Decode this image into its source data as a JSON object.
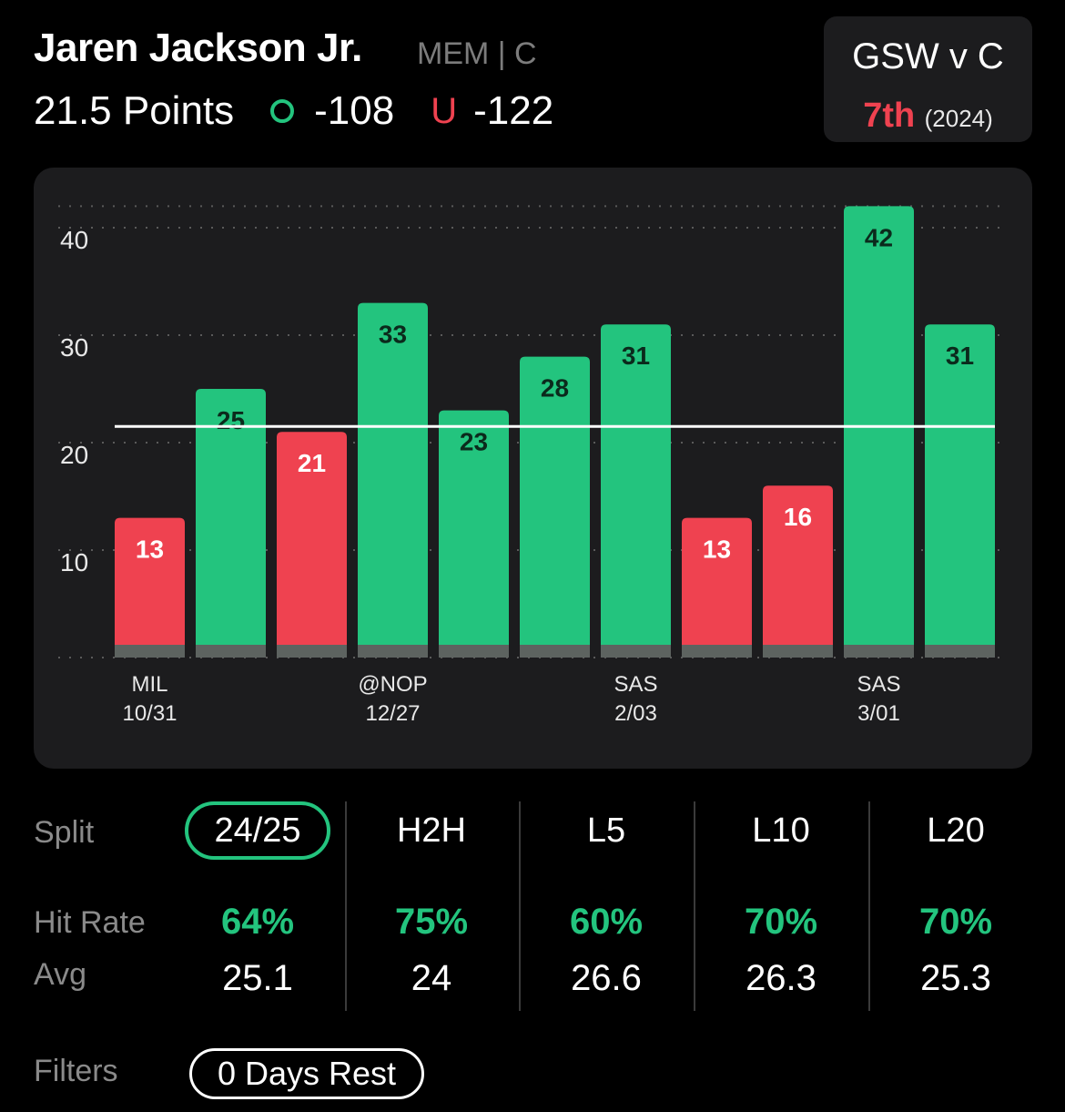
{
  "header": {
    "player_name": "Jaren Jackson Jr.",
    "team_position": "MEM | C",
    "line": "21.5 Points",
    "over_odds": "-108",
    "under_label": "U",
    "under_odds": "-122",
    "over_icon": "circle-outline-icon"
  },
  "matchup": {
    "title": "GSW v C",
    "rank": "7th",
    "year": "(2024)"
  },
  "colors": {
    "over": "#23c47e",
    "under": "#ef4250",
    "panel": "#1c1c1e"
  },
  "chart_data": {
    "type": "bar",
    "line_value": 21.5,
    "ylim": [
      0,
      44
    ],
    "yticks": [
      10,
      20,
      30,
      40
    ],
    "grid": true,
    "values": [
      13,
      25,
      21,
      33,
      23,
      28,
      31,
      13,
      16,
      42,
      31
    ],
    "x_labels": [
      {
        "index": 0,
        "team": "MIL",
        "date": "10/31"
      },
      {
        "index": 3,
        "team": "@NOP",
        "date": "12/27"
      },
      {
        "index": 6,
        "team": "SAS",
        "date": "2/03"
      },
      {
        "index": 9,
        "team": "SAS",
        "date": "3/01"
      }
    ]
  },
  "splits": {
    "split_label": "Split",
    "hit_rate_label": "Hit Rate",
    "avg_label": "Avg",
    "columns": [
      {
        "label": "24/25",
        "hit_rate": "64%",
        "avg": "25.1",
        "active": true
      },
      {
        "label": "H2H",
        "hit_rate": "75%",
        "avg": "24",
        "active": false
      },
      {
        "label": "L5",
        "hit_rate": "60%",
        "avg": "26.6",
        "active": false
      },
      {
        "label": "L10",
        "hit_rate": "70%",
        "avg": "26.3",
        "active": false
      },
      {
        "label": "L20",
        "hit_rate": "70%",
        "avg": "25.3",
        "active": false
      }
    ]
  },
  "filters": {
    "label": "Filters",
    "chip": "0 Days Rest"
  }
}
